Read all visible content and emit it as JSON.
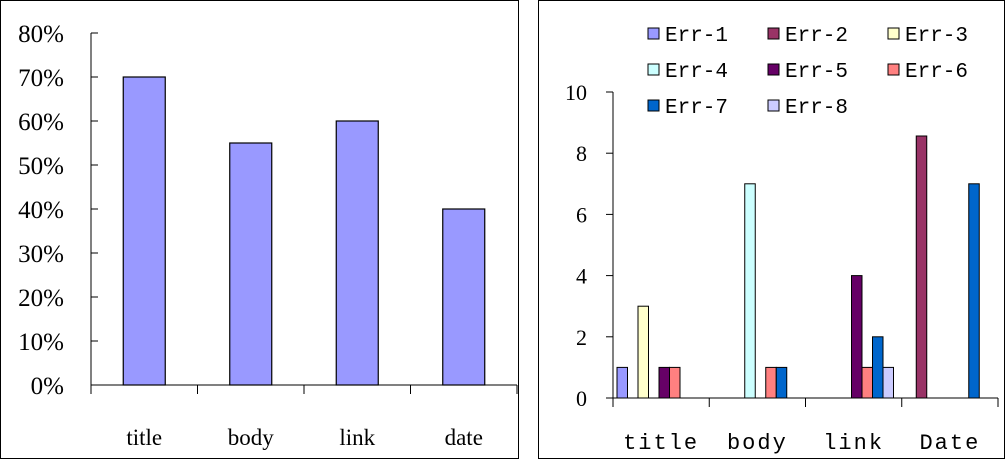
{
  "chart_data": [
    {
      "type": "bar",
      "categories": [
        "title",
        "body",
        "link",
        "date"
      ],
      "values": [
        0.7,
        0.55,
        0.6,
        0.4
      ],
      "ylim": [
        0,
        0.8
      ],
      "yticks": [
        "0%",
        "10%",
        "20%",
        "30%",
        "40%",
        "50%",
        "60%",
        "70%",
        "80%"
      ],
      "grid": false,
      "colors": {
        "bar": "#9999ff",
        "stroke": "#000000"
      }
    },
    {
      "type": "bar",
      "categories": [
        "title",
        "body",
        "link",
        "Date"
      ],
      "series": [
        {
          "name": "Err-1",
          "values": [
            1,
            0,
            0,
            0
          ],
          "color": "#9999ff"
        },
        {
          "name": "Err-2",
          "values": [
            0,
            0,
            0,
            9
          ],
          "color": "#993366"
        },
        {
          "name": "Err-3",
          "values": [
            3,
            0,
            0,
            0
          ],
          "color": "#ffffcc"
        },
        {
          "name": "Err-4",
          "values": [
            0,
            7,
            0,
            0
          ],
          "color": "#ccffff"
        },
        {
          "name": "Err-5",
          "values": [
            1,
            0,
            4,
            0
          ],
          "color": "#660066"
        },
        {
          "name": "Err-6",
          "values": [
            1,
            1,
            1,
            0
          ],
          "color": "#ff8080"
        },
        {
          "name": "Err-7",
          "values": [
            0,
            1,
            2,
            7
          ],
          "color": "#0066cc"
        },
        {
          "name": "Err-8",
          "values": [
            0,
            0,
            1,
            0
          ],
          "color": "#ccccff"
        }
      ],
      "ylim": [
        0,
        10
      ],
      "yticks": [
        "0",
        "2",
        "4",
        "6",
        "8",
        "10"
      ],
      "legend": "top",
      "grid": false
    }
  ]
}
